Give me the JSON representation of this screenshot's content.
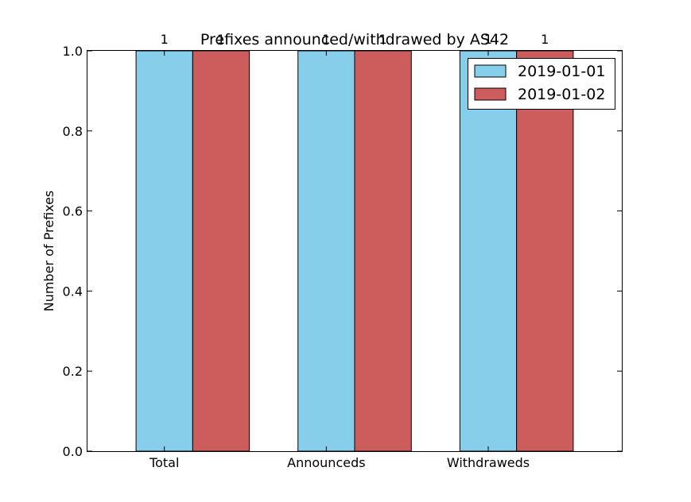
{
  "chart_data": {
    "type": "bar",
    "title": "Prefixes announced/withdrawed by AS42",
    "xlabel": "",
    "ylabel": "Number of Prefixes",
    "categories": [
      "Total",
      "Announceds",
      "Withdraweds"
    ],
    "series": [
      {
        "name": "2019-01-01",
        "values": [
          1,
          1,
          1
        ],
        "color": "#87ceeb"
      },
      {
        "name": "2019-01-02",
        "values": [
          1,
          1,
          1
        ],
        "color": "#cd5c5c"
      }
    ],
    "data_labels": [
      [
        "1",
        "1",
        "1"
      ],
      [
        "1",
        "1",
        "1"
      ]
    ],
    "ylim": [
      0,
      1.0
    ],
    "yticks": [
      "0.0",
      "0.2",
      "0.4",
      "0.6",
      "0.8",
      "1.0"
    ],
    "grid": false,
    "legend_position": "top-right"
  }
}
